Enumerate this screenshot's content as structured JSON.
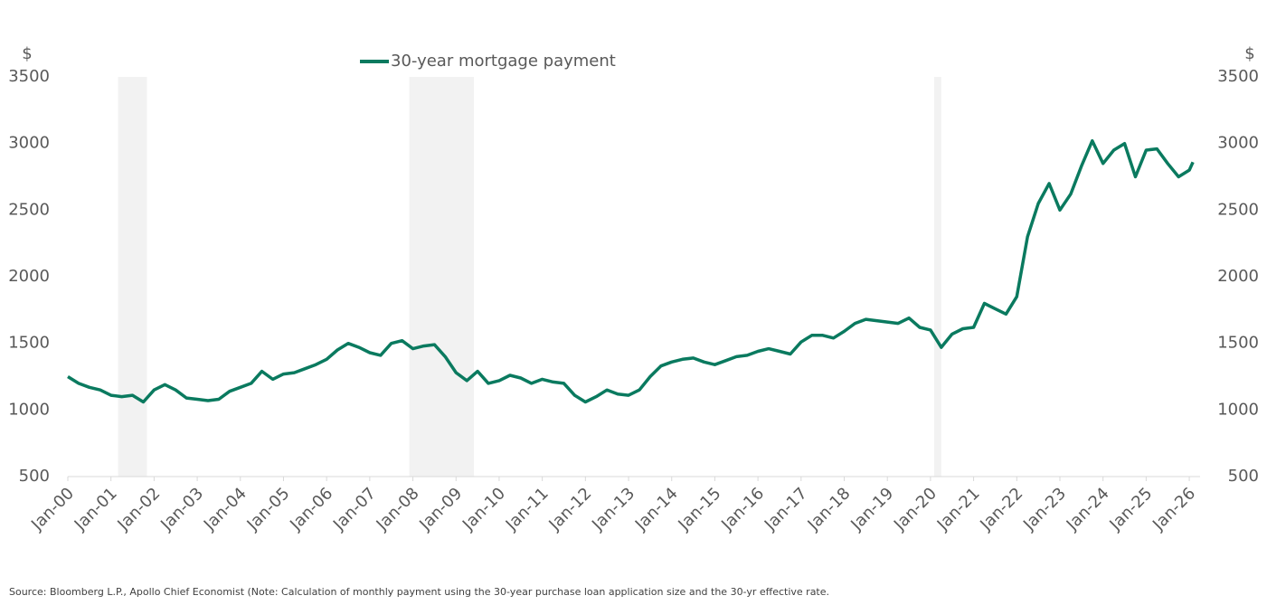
{
  "chart_data": {
    "type": "line",
    "y_label": "$",
    "y2_label": "$",
    "footnote": "Source: Bloomberg L.P., Apollo Chief Economist (Note: Calculation of monthly payment using the 30-year purchase loan application size and the 30-yr effective rate.",
    "x": [
      "2000-01",
      "2000-04",
      "2000-07",
      "2000-10",
      "2001-01",
      "2001-04",
      "2001-07",
      "2001-10",
      "2002-01",
      "2002-04",
      "2002-07",
      "2002-10",
      "2003-01",
      "2003-04",
      "2003-07",
      "2003-10",
      "2004-01",
      "2004-04",
      "2004-07",
      "2004-10",
      "2005-01",
      "2005-04",
      "2005-07",
      "2005-10",
      "2006-01",
      "2006-04",
      "2006-07",
      "2006-10",
      "2007-01",
      "2007-04",
      "2007-07",
      "2007-10",
      "2008-01",
      "2008-04",
      "2008-07",
      "2008-10",
      "2009-01",
      "2009-04",
      "2009-07",
      "2009-10",
      "2010-01",
      "2010-04",
      "2010-07",
      "2010-10",
      "2011-01",
      "2011-04",
      "2011-07",
      "2011-10",
      "2012-01",
      "2012-04",
      "2012-07",
      "2012-10",
      "2013-01",
      "2013-04",
      "2013-07",
      "2013-10",
      "2014-01",
      "2014-04",
      "2014-07",
      "2014-10",
      "2015-01",
      "2015-04",
      "2015-07",
      "2015-10",
      "2016-01",
      "2016-04",
      "2016-07",
      "2016-10",
      "2017-01",
      "2017-04",
      "2017-07",
      "2017-10",
      "2018-01",
      "2018-04",
      "2018-07",
      "2018-10",
      "2019-01",
      "2019-04",
      "2019-07",
      "2019-10",
      "2020-01",
      "2020-04",
      "2020-07",
      "2020-10",
      "2021-01",
      "2021-04",
      "2021-07",
      "2021-10",
      "2022-01",
      "2022-04",
      "2022-07",
      "2022-10",
      "2023-01",
      "2023-04",
      "2023-07",
      "2023-10",
      "2024-01",
      "2024-04",
      "2024-07",
      "2024-10",
      "2025-01",
      "2025-04",
      "2025-07",
      "2025-10",
      "2026-01",
      "2026-02"
    ],
    "series": [
      {
        "name": "30-year mortgage payment",
        "color": "#0a7a5f",
        "values": [
          1250,
          1200,
          1170,
          1150,
          1110,
          1100,
          1110,
          1060,
          1150,
          1190,
          1150,
          1090,
          1080,
          1070,
          1080,
          1140,
          1170,
          1200,
          1290,
          1230,
          1270,
          1280,
          1310,
          1340,
          1380,
          1450,
          1500,
          1470,
          1430,
          1410,
          1500,
          1520,
          1460,
          1480,
          1490,
          1400,
          1280,
          1220,
          1290,
          1200,
          1220,
          1260,
          1240,
          1200,
          1230,
          1210,
          1200,
          1110,
          1060,
          1100,
          1150,
          1120,
          1110,
          1150,
          1250,
          1330,
          1360,
          1380,
          1390,
          1360,
          1340,
          1370,
          1400,
          1410,
          1440,
          1460,
          1440,
          1420,
          1510,
          1560,
          1560,
          1540,
          1590,
          1650,
          1680,
          1670,
          1660,
          1650,
          1690,
          1620,
          1600,
          1470,
          1570,
          1610,
          1620,
          1800,
          1760,
          1720,
          1850,
          2300,
          2550,
          2700,
          2500,
          2620,
          2830,
          3020,
          2850,
          2950,
          3000,
          2750,
          2950,
          2960,
          2850,
          2750,
          2800,
          2860
        ]
      }
    ],
    "recessions": [
      [
        "2001-03",
        "2001-11"
      ],
      [
        "2007-12",
        "2009-06"
      ],
      [
        "2020-02",
        "2020-04"
      ]
    ],
    "xlim": [
      "2000-01",
      "2026-04"
    ],
    "xticks": [
      {
        "value": "2000-01",
        "label": "Jan-00"
      },
      {
        "value": "2001-01",
        "label": "Jan-01"
      },
      {
        "value": "2002-01",
        "label": "Jan-02"
      },
      {
        "value": "2003-01",
        "label": "Jan-03"
      },
      {
        "value": "2004-01",
        "label": "Jan-04"
      },
      {
        "value": "2005-01",
        "label": "Jan-05"
      },
      {
        "value": "2006-01",
        "label": "Jan-06"
      },
      {
        "value": "2007-01",
        "label": "Jan-07"
      },
      {
        "value": "2008-01",
        "label": "Jan-08"
      },
      {
        "value": "2009-01",
        "label": "Jan-09"
      },
      {
        "value": "2010-01",
        "label": "Jan-10"
      },
      {
        "value": "2011-01",
        "label": "Jan-11"
      },
      {
        "value": "2012-01",
        "label": "Jan-12"
      },
      {
        "value": "2013-01",
        "label": "Jan-13"
      },
      {
        "value": "2014-01",
        "label": "Jan-14"
      },
      {
        "value": "2015-01",
        "label": "Jan-15"
      },
      {
        "value": "2016-01",
        "label": "Jan-16"
      },
      {
        "value": "2017-01",
        "label": "Jan-17"
      },
      {
        "value": "2018-01",
        "label": "Jan-18"
      },
      {
        "value": "2019-01",
        "label": "Jan-19"
      },
      {
        "value": "2020-01",
        "label": "Jan-20"
      },
      {
        "value": "2021-01",
        "label": "Jan-21"
      },
      {
        "value": "2022-01",
        "label": "Jan-22"
      },
      {
        "value": "2023-01",
        "label": "Jan-23"
      },
      {
        "value": "2024-01",
        "label": "Jan-24"
      },
      {
        "value": "2025-01",
        "label": "Jan-25"
      },
      {
        "value": "2026-01",
        "label": "Jan-26"
      }
    ],
    "ylim": [
      500,
      3500
    ],
    "yticks": [
      500,
      1000,
      1500,
      2000,
      2500,
      3000,
      3500
    ],
    "y2lim": [
      500,
      3500
    ],
    "y2ticks": [
      500,
      1000,
      1500,
      2000,
      2500,
      3000,
      3500
    ],
    "legend": "top-center"
  }
}
